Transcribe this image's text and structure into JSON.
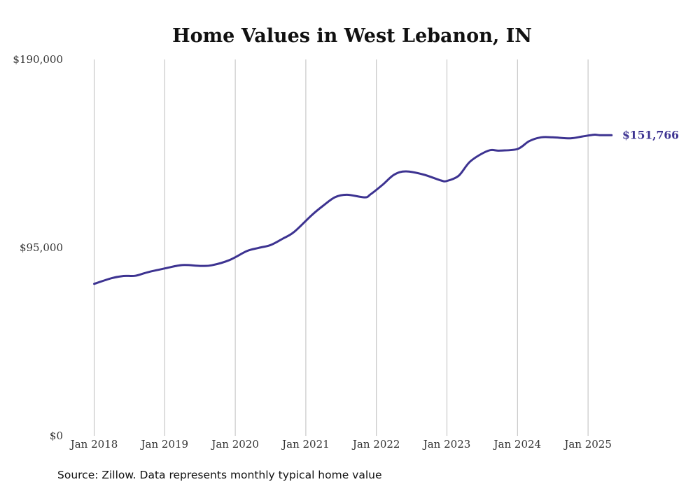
{
  "chart_data": {
    "type": "line",
    "title": "Home Values in West Lebanon, IN",
    "xlabel": "",
    "ylabel": "",
    "x_tick_labels": [
      "Jan 2018",
      "Jan 2019",
      "Jan 2020",
      "Jan 2021",
      "Jan 2022",
      "Jan 2023",
      "Jan 2024",
      "Jan 2025"
    ],
    "y_tick_labels": [
      "$0",
      "$95,000",
      "$190,000"
    ],
    "ylim": [
      0,
      190000
    ],
    "xlim": [
      "2018-01",
      "2025-05"
    ],
    "grid": {
      "vertical": true,
      "horizontal": false
    },
    "line_color": "#3d3391",
    "end_label": "$151,766",
    "source_note": "Source: Zillow. Data represents monthly typical home value",
    "series": [
      {
        "x": [
          "2018-01",
          "2018-04",
          "2018-06",
          "2018-08",
          "2018-10",
          "2019-01",
          "2019-04",
          "2019-07",
          "2019-09",
          "2019-12",
          "2020-03",
          "2020-05",
          "2020-07",
          "2020-09",
          "2020-11",
          "2021-02",
          "2021-04",
          "2021-06",
          "2021-08",
          "2021-11",
          "2021-12",
          "2022-02",
          "2022-04",
          "2022-06",
          "2022-09",
          "2022-12",
          "2023-01",
          "2023-03",
          "2023-05",
          "2023-08",
          "2023-10",
          "2024-01",
          "2024-03",
          "2024-05",
          "2024-07",
          "2024-10",
          "2024-12",
          "2025-02",
          "2025-03",
          "2025-05"
        ],
        "values": [
          76700,
          79600,
          80700,
          80800,
          82500,
          84500,
          86200,
          85800,
          86100,
          88700,
          93300,
          94900,
          96300,
          99400,
          102900,
          111400,
          116300,
          120500,
          121700,
          120400,
          121900,
          126600,
          131800,
          133500,
          131900,
          128900,
          128700,
          131300,
          138600,
          143900,
          144000,
          144800,
          148800,
          150700,
          150700,
          150200,
          151100,
          152000,
          151800,
          151766
        ]
      }
    ]
  }
}
